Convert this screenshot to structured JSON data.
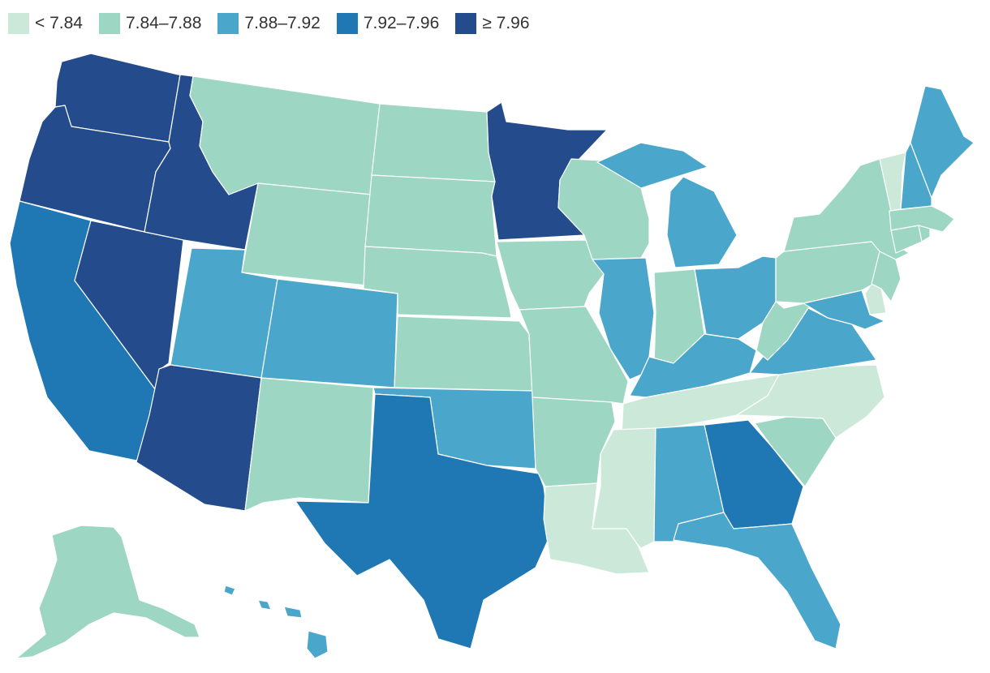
{
  "legend": {
    "items": [
      {
        "label": "< 7.84",
        "color": "#cce8d8",
        "bin": 0
      },
      {
        "label": "7.84–7.88",
        "color": "#9dd6c2",
        "bin": 1
      },
      {
        "label": "7.88–7.92",
        "color": "#4ba6cb",
        "bin": 2
      },
      {
        "label": "7.92–7.96",
        "color": "#1f78b4",
        "bin": 3
      },
      {
        "label": "≥ 7.96",
        "color": "#244b8b",
        "bin": 4
      }
    ]
  },
  "map": {
    "states": [
      {
        "id": "WA",
        "bin": 4
      },
      {
        "id": "OR",
        "bin": 4
      },
      {
        "id": "CA",
        "bin": 3
      },
      {
        "id": "NV",
        "bin": 4
      },
      {
        "id": "ID",
        "bin": 4
      },
      {
        "id": "MT",
        "bin": 1
      },
      {
        "id": "WY",
        "bin": 1
      },
      {
        "id": "UT",
        "bin": 2
      },
      {
        "id": "AZ",
        "bin": 4
      },
      {
        "id": "CO",
        "bin": 2
      },
      {
        "id": "NM",
        "bin": 1
      },
      {
        "id": "ND",
        "bin": 1
      },
      {
        "id": "SD",
        "bin": 1
      },
      {
        "id": "NE",
        "bin": 1
      },
      {
        "id": "KS",
        "bin": 1
      },
      {
        "id": "OK",
        "bin": 2
      },
      {
        "id": "TX",
        "bin": 3
      },
      {
        "id": "MN",
        "bin": 4
      },
      {
        "id": "IA",
        "bin": 1
      },
      {
        "id": "MO",
        "bin": 1
      },
      {
        "id": "AR",
        "bin": 1
      },
      {
        "id": "LA",
        "bin": 0
      },
      {
        "id": "WI",
        "bin": 1
      },
      {
        "id": "IL",
        "bin": 2
      },
      {
        "id": "MI",
        "bin": 2
      },
      {
        "id": "IN",
        "bin": 1
      },
      {
        "id": "OH",
        "bin": 2
      },
      {
        "id": "KY",
        "bin": 2
      },
      {
        "id": "TN",
        "bin": 0
      },
      {
        "id": "MS",
        "bin": 0
      },
      {
        "id": "AL",
        "bin": 2
      },
      {
        "id": "GA",
        "bin": 3
      },
      {
        "id": "FL",
        "bin": 2
      },
      {
        "id": "SC",
        "bin": 1
      },
      {
        "id": "NC",
        "bin": 0
      },
      {
        "id": "VA",
        "bin": 2
      },
      {
        "id": "WV",
        "bin": 1
      },
      {
        "id": "MD",
        "bin": 2
      },
      {
        "id": "DE",
        "bin": 0
      },
      {
        "id": "PA",
        "bin": 1
      },
      {
        "id": "NJ",
        "bin": 1
      },
      {
        "id": "NY",
        "bin": 1
      },
      {
        "id": "CT",
        "bin": 1
      },
      {
        "id": "RI",
        "bin": 1
      },
      {
        "id": "MA",
        "bin": 1
      },
      {
        "id": "VT",
        "bin": 0
      },
      {
        "id": "NH",
        "bin": 2
      },
      {
        "id": "ME",
        "bin": 2
      },
      {
        "id": "AK",
        "bin": 1
      },
      {
        "id": "HI",
        "bin": 2
      }
    ]
  }
}
